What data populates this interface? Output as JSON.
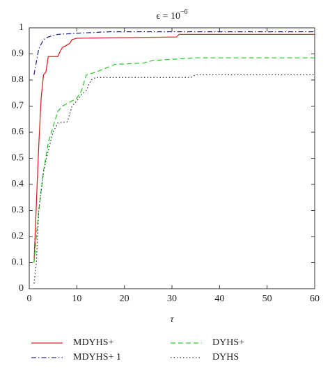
{
  "chart_data": {
    "type": "line",
    "title": {
      "base": "ϵ = 10",
      "exponent": "−6"
    },
    "x_label": "τ",
    "xlim": [
      0,
      60
    ],
    "xticks": [
      0,
      10,
      20,
      30,
      40,
      50,
      60
    ],
    "ylim": [
      0,
      1
    ],
    "yticks": [
      0,
      0.1,
      0.2,
      0.3,
      0.4,
      0.5,
      0.6,
      0.7,
      0.8,
      0.9,
      1
    ],
    "grid": false,
    "legend": "bottom",
    "series": [
      {
        "name": "MDYHS+",
        "color": "#d62728",
        "style": "solid",
        "x": [
          1,
          2,
          2.5,
          3,
          3.5,
          4,
          6,
          6.5,
          7,
          8.5,
          9,
          10,
          31,
          31.5,
          60
        ],
        "values": [
          0.1,
          0.55,
          0.73,
          0.82,
          0.83,
          0.89,
          0.89,
          0.91,
          0.925,
          0.94,
          0.955,
          0.96,
          0.965,
          0.975,
          0.975
        ]
      },
      {
        "name": "MDYHS+ 1",
        "color": "#2a2a9a",
        "style": "dashdot",
        "x": [
          1,
          1.5,
          2,
          3,
          4,
          6,
          11,
          17,
          60
        ],
        "values": [
          0.82,
          0.87,
          0.92,
          0.955,
          0.965,
          0.975,
          0.98,
          0.985,
          0.985
        ]
      },
      {
        "name": "DYHS+",
        "color": "#2ecc2e",
        "style": "dashed",
        "x": [
          1,
          2,
          3,
          4,
          5,
          6,
          7,
          8,
          9,
          10,
          11,
          12,
          14,
          16,
          18,
          24,
          26,
          35,
          60
        ],
        "values": [
          0.1,
          0.3,
          0.45,
          0.56,
          0.62,
          0.68,
          0.7,
          0.71,
          0.72,
          0.73,
          0.76,
          0.82,
          0.83,
          0.845,
          0.86,
          0.865,
          0.875,
          0.885,
          0.885
        ]
      },
      {
        "name": "DYHS",
        "color": "#333333",
        "style": "dotted",
        "x": [
          1,
          1.5,
          2,
          3,
          4,
          5,
          6,
          8,
          9,
          10,
          11,
          12,
          13,
          14,
          34,
          35,
          60
        ],
        "values": [
          0.02,
          0.1,
          0.3,
          0.45,
          0.53,
          0.6,
          0.635,
          0.64,
          0.7,
          0.72,
          0.745,
          0.76,
          0.8,
          0.81,
          0.81,
          0.82,
          0.82
        ]
      }
    ]
  }
}
